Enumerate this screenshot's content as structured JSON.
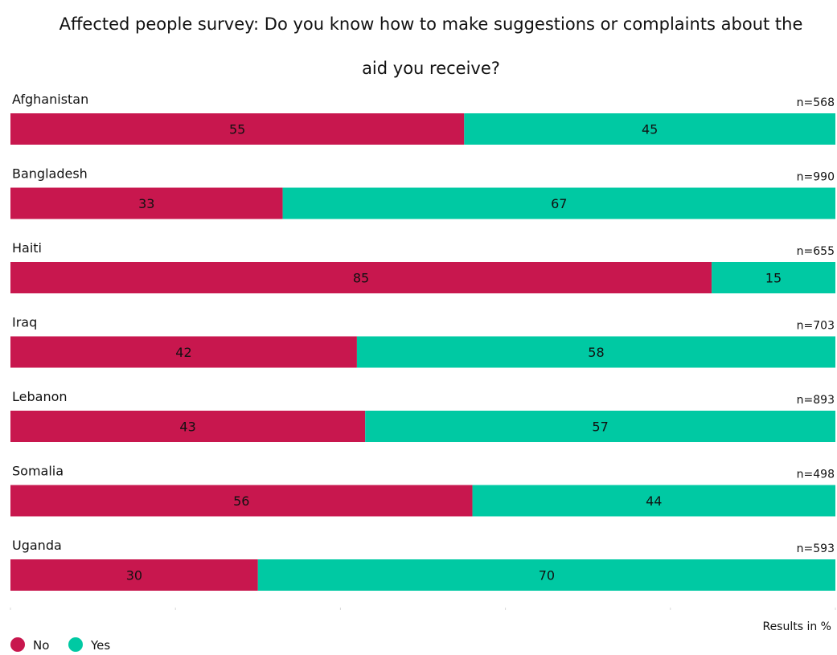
{
  "chart_data": {
    "type": "bar",
    "orientation": "horizontal",
    "stacked": true,
    "title_line1": "Affected people survey: Do you know how to make suggestions or complaints about the",
    "title_line2": "aid you receive?",
    "categories": [
      "Afghanistan",
      "Bangladesh",
      "Haiti",
      "Iraq",
      "Lebanon",
      "Somalia",
      "Uganda"
    ],
    "sample_sizes": [
      "n=568",
      "n=990",
      "n=655",
      "n=703",
      "n=893",
      "n=498",
      "n=593"
    ],
    "series": [
      {
        "name": "No",
        "color": "#c8174e",
        "values": [
          55,
          33,
          85,
          42,
          43,
          56,
          30
        ]
      },
      {
        "name": "Yes",
        "color": "#00c9a3",
        "values": [
          45,
          67,
          15,
          58,
          57,
          44,
          70
        ]
      }
    ],
    "xlim": [
      0,
      100
    ],
    "units_note": "Results in %",
    "legend_position": "bottom-left",
    "grid": false
  }
}
